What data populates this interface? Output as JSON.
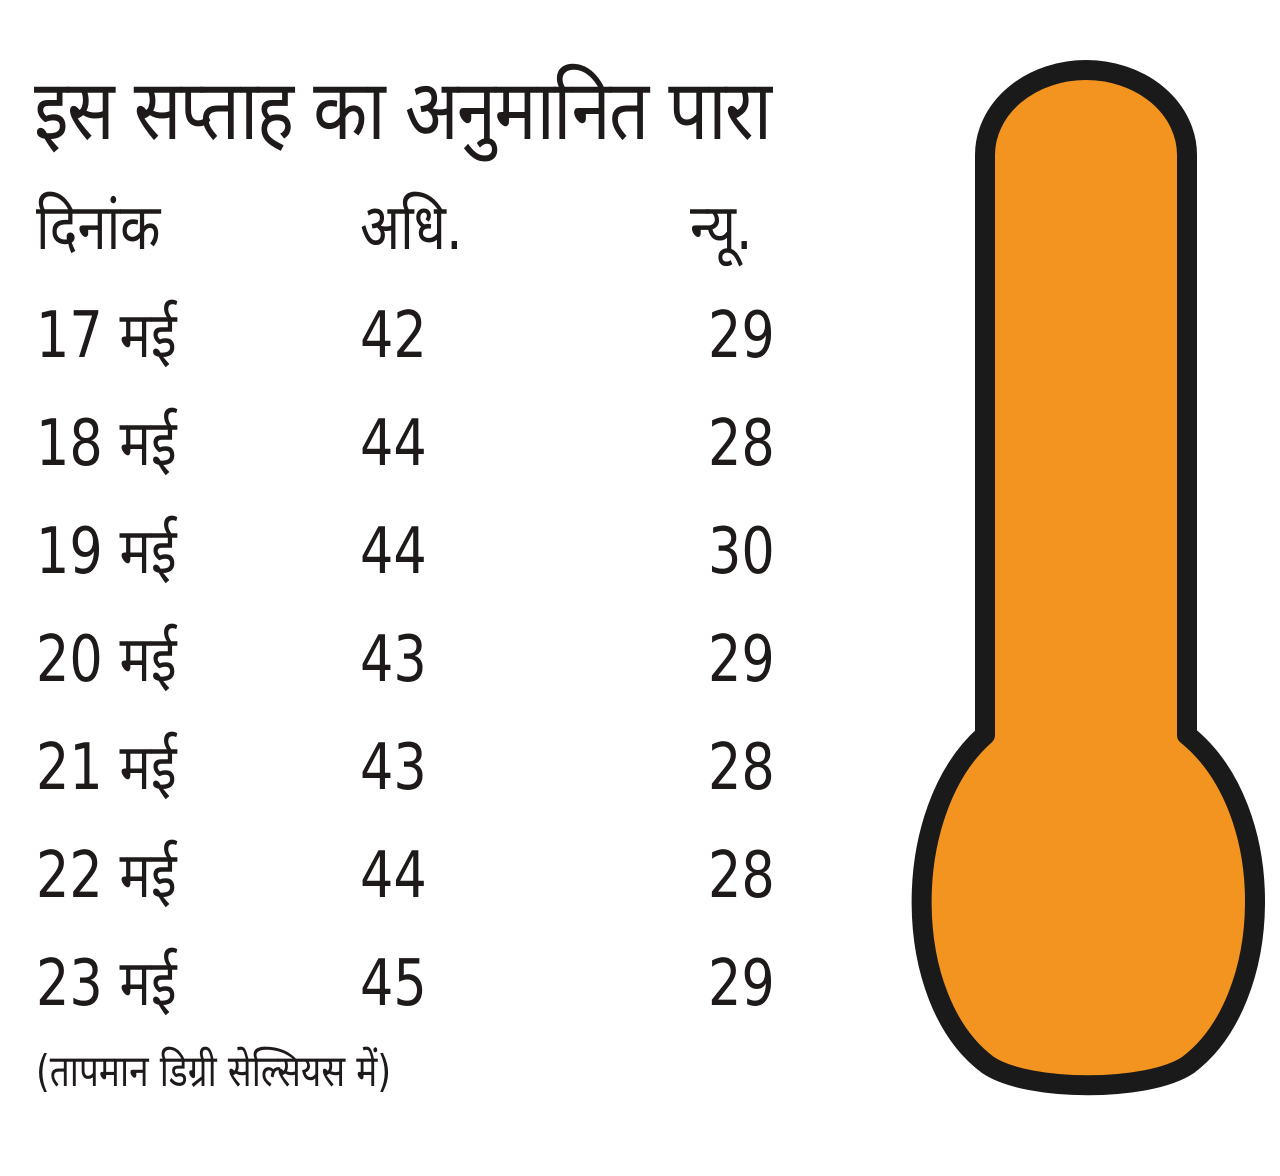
{
  "title": "इस सप्ताह का अनुमानित पारा",
  "table": {
    "headers": {
      "date": "दिनांक",
      "max": "अधि.",
      "min": "न्यू."
    },
    "rows": [
      {
        "date": "17 मई",
        "max": "42",
        "min": "29"
      },
      {
        "date": "18 मई",
        "max": "44",
        "min": "28"
      },
      {
        "date": "19 मई",
        "max": "44",
        "min": "30"
      },
      {
        "date": "20 मई",
        "max": "43",
        "min": "29"
      },
      {
        "date": "21 मई",
        "max": "43",
        "min": "28"
      },
      {
        "date": "22 मई",
        "max": "44",
        "min": "28"
      },
      {
        "date": "23 मई",
        "max": "45",
        "min": "29"
      }
    ]
  },
  "footnote": "(तापमान डिग्री सेल्सियस में)",
  "thermometer": {
    "fill_color": "#f39420",
    "outline_color": "#1a1a1a"
  }
}
